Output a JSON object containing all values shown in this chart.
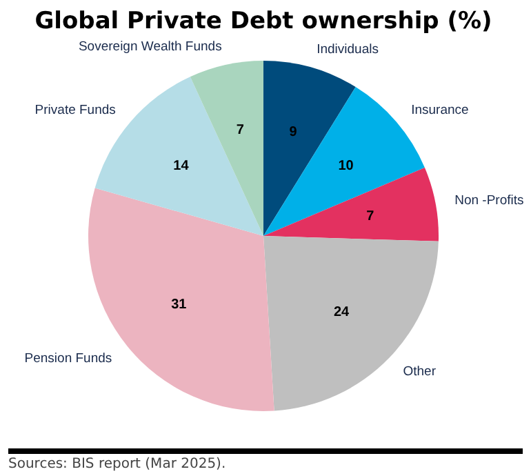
{
  "chart_data": {
    "type": "pie",
    "title": "Global Private Debt ownership (%)",
    "categories": [
      "Individuals",
      "Insurance",
      "Non -Profits",
      "Other",
      "Pension Funds",
      "Private Funds",
      "Sovereign Wealth Funds"
    ],
    "values": [
      9,
      10,
      7,
      24,
      31,
      14,
      7
    ],
    "colors": [
      "#004b7c",
      "#00b0e8",
      "#e33160",
      "#bfbfbf",
      "#ecb4c0",
      "#b5dde7",
      "#a9d5be"
    ],
    "data_labels": true,
    "legend": false,
    "annotations": [
      "Sources: BIS report (Mar 2025)."
    ]
  }
}
